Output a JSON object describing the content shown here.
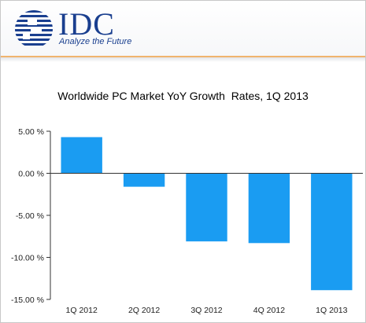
{
  "header": {
    "logo_name": "IDC",
    "logo_tagline": "Analyze the Future"
  },
  "colors": {
    "bar": "#1a9cf2",
    "brand": "#1a3f8f",
    "accent_rule": "#f0b46e"
  },
  "chart_data": {
    "type": "bar",
    "title": "Worldwide PC Market YoY Growth  Rates, 1Q 2013",
    "xlabel": "",
    "ylabel": "",
    "categories": [
      "1Q 2012",
      "2Q 2012",
      "3Q 2012",
      "4Q 2012",
      "1Q 2013"
    ],
    "values": [
      4.3,
      -1.6,
      -8.1,
      -8.3,
      -13.9
    ],
    "ylim": [
      -15,
      5
    ],
    "yticks": [
      5,
      0,
      -5,
      -10,
      -15
    ],
    "ytick_labels": [
      "5.00 %",
      "0.00 %",
      "-5.00 %",
      "-10.00 %",
      "-15.00 %"
    ],
    "grid": false,
    "legend": "none"
  }
}
